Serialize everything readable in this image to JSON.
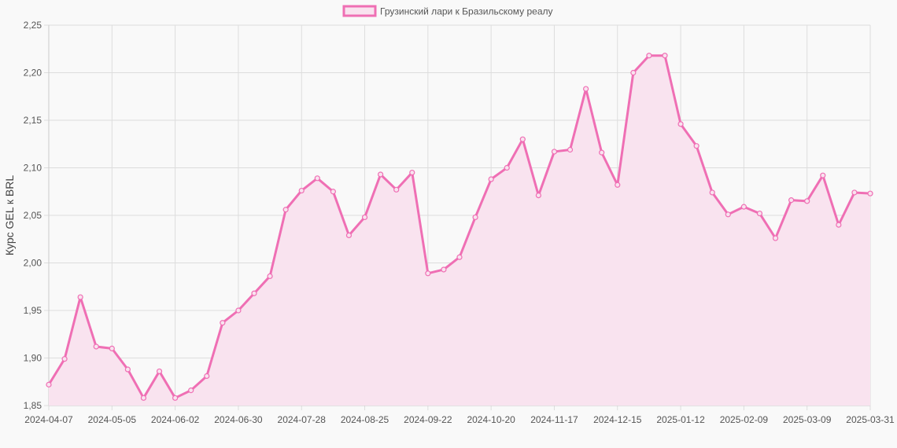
{
  "chart_data": {
    "type": "area",
    "ylabel": "Курс GEL к BRL",
    "xlabel": "",
    "ylim": [
      1.85,
      2.25
    ],
    "y_ticks": [
      "1,85",
      "1,90",
      "1,95",
      "2,00",
      "2,05",
      "2,10",
      "2,15",
      "2,20",
      "2,25"
    ],
    "x_tick_labels": [
      "2024-04-07",
      "2024-05-05",
      "2024-06-02",
      "2024-06-30",
      "2024-07-28",
      "2024-08-25",
      "2024-09-22",
      "2024-10-20",
      "2024-11-17",
      "2024-12-15",
      "2025-01-12",
      "2025-02-09",
      "2025-03-09",
      "2025-03-31"
    ],
    "x_tick_indices": [
      0,
      4,
      8,
      12,
      16,
      20,
      24,
      28,
      32,
      36,
      40,
      44,
      48,
      52
    ],
    "legend_position": "top",
    "grid": true,
    "colors": {
      "line": "#ef6fb4",
      "fill": "#f9e3ef",
      "grid": "#dddddd",
      "background": "#f9f9f9"
    },
    "series": [
      {
        "name": "Грузинский лари к Бразильскому реалу",
        "values": [
          1.872,
          1.899,
          1.964,
          1.912,
          1.91,
          1.888,
          1.858,
          1.886,
          1.858,
          1.866,
          1.881,
          1.937,
          1.95,
          1.968,
          1.986,
          2.056,
          2.076,
          2.089,
          2.075,
          2.029,
          2.048,
          2.093,
          2.077,
          2.095,
          1.989,
          1.993,
          2.006,
          2.048,
          2.088,
          2.1,
          2.13,
          2.071,
          2.117,
          2.119,
          2.183,
          2.116,
          2.082,
          2.2,
          2.218,
          2.218,
          2.146,
          2.123,
          2.074,
          2.051,
          2.059,
          2.052,
          2.026,
          2.066,
          2.065,
          2.092,
          2.04,
          2.074,
          2.073
        ]
      }
    ]
  }
}
